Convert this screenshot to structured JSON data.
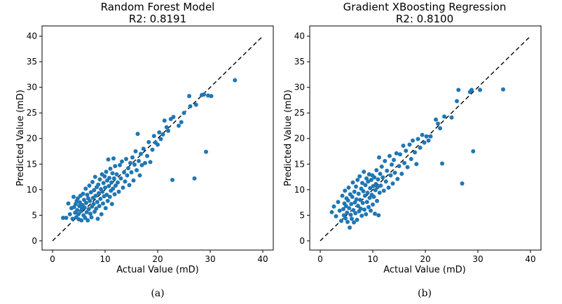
{
  "captions": [
    "(a)",
    "(b)"
  ],
  "chart_data": [
    {
      "type": "scatter",
      "title": "Random Forest Model",
      "subtitle": "R2: 0.8191",
      "xlabel": "Actual Value (mD)",
      "ylabel": "Predicted Value (mD)",
      "xlim": [
        -2,
        42
      ],
      "ylim": [
        -1.8,
        42
      ],
      "xticks": [
        0,
        10,
        20,
        30,
        40
      ],
      "yticks": [
        0,
        5,
        10,
        15,
        20,
        25,
        30,
        35,
        40
      ],
      "grid": false,
      "reference_line": {
        "x": [
          0,
          40
        ],
        "y": [
          0,
          40
        ],
        "style": "dashed"
      },
      "marker_color": "#1f77b4",
      "series": [
        {
          "points": [
            [
              2.0,
              4.5
            ],
            [
              2.6,
              4.5
            ],
            [
              3.0,
              7.3
            ],
            [
              3.3,
              5.2
            ],
            [
              3.6,
              6.4
            ],
            [
              3.8,
              4.3
            ],
            [
              4.0,
              8.6
            ],
            [
              4.1,
              6.6
            ],
            [
              4.3,
              5.5
            ],
            [
              4.4,
              7.2
            ],
            [
              4.5,
              4.6
            ],
            [
              4.6,
              7.8
            ],
            [
              4.7,
              6.0
            ],
            [
              4.8,
              8.3
            ],
            [
              4.9,
              5.2
            ],
            [
              5.0,
              4.2
            ],
            [
              5.1,
              6.8
            ],
            [
              5.2,
              7.5
            ],
            [
              5.3,
              8.8
            ],
            [
              5.4,
              5.8
            ],
            [
              5.5,
              4.0
            ],
            [
              5.6,
              6.3
            ],
            [
              5.7,
              7.0
            ],
            [
              5.8,
              9.2
            ],
            [
              5.9,
              5.0
            ],
            [
              6.0,
              8.0
            ],
            [
              6.1,
              6.5
            ],
            [
              6.2,
              4.5
            ],
            [
              6.3,
              10.2
            ],
            [
              6.4,
              7.4
            ],
            [
              6.5,
              5.6
            ],
            [
              6.6,
              9.0
            ],
            [
              6.7,
              4.0
            ],
            [
              6.8,
              8.3
            ],
            [
              6.9,
              6.2
            ],
            [
              7.0,
              10.8
            ],
            [
              7.1,
              7.8
            ],
            [
              7.2,
              5.3
            ],
            [
              7.3,
              9.5
            ],
            [
              7.4,
              4.6
            ],
            [
              7.5,
              6.7
            ],
            [
              7.6,
              11.5
            ],
            [
              7.7,
              8.4
            ],
            [
              7.8,
              7.2
            ],
            [
              7.9,
              9.9
            ],
            [
              8.0,
              5.7
            ],
            [
              8.1,
              12.5
            ],
            [
              8.2,
              8.8
            ],
            [
              8.3,
              6.3
            ],
            [
              8.4,
              10.5
            ],
            [
              8.5,
              7.6
            ],
            [
              8.6,
              4.3
            ],
            [
              8.7,
              11.0
            ],
            [
              8.8,
              9.3
            ],
            [
              8.9,
              6.8
            ],
            [
              9.0,
              12.0
            ],
            [
              9.1,
              8.2
            ],
            [
              9.2,
              10.1
            ],
            [
              9.3,
              5.2
            ],
            [
              9.4,
              13.0
            ],
            [
              9.5,
              9.6
            ],
            [
              9.6,
              7.3
            ],
            [
              9.7,
              11.3
            ],
            [
              9.8,
              8.7
            ],
            [
              9.9,
              12.6
            ],
            [
              10.0,
              10.4
            ],
            [
              10.1,
              6.4
            ],
            [
              10.2,
              13.5
            ],
            [
              10.3,
              9.0
            ],
            [
              10.4,
              11.8
            ],
            [
              10.5,
              7.8
            ],
            [
              10.6,
              15.9
            ],
            [
              10.7,
              10.7
            ],
            [
              10.8,
              12.3
            ],
            [
              10.9,
              8.6
            ],
            [
              11.0,
              14.1
            ],
            [
              11.1,
              9.8
            ],
            [
              11.2,
              11.4
            ],
            [
              11.3,
              7.2
            ],
            [
              11.4,
              13.2
            ],
            [
              11.5,
              10.2
            ],
            [
              11.6,
              16.1
            ],
            [
              11.7,
              12.2
            ],
            [
              11.8,
              9.1
            ],
            [
              11.9,
              14.6
            ],
            [
              12.0,
              10.8
            ],
            [
              12.2,
              13.0
            ],
            [
              12.4,
              11.4
            ],
            [
              12.6,
              9.6
            ],
            [
              12.8,
              14.8
            ],
            [
              13.0,
              12.2
            ],
            [
              13.2,
              15.5
            ],
            [
              13.4,
              10.4
            ],
            [
              13.6,
              13.4
            ],
            [
              13.8,
              11.6
            ],
            [
              14.0,
              16.0
            ],
            [
              14.2,
              12.8
            ],
            [
              14.4,
              14.2
            ],
            [
              14.6,
              10.9
            ],
            [
              14.8,
              15.2
            ],
            [
              15.0,
              13.4
            ],
            [
              15.2,
              16.3
            ],
            [
              15.4,
              11.8
            ],
            [
              15.6,
              14.9
            ],
            [
              15.8,
              17.5
            ],
            [
              16.0,
              13.8
            ],
            [
              16.2,
              20.9
            ],
            [
              16.4,
              15.6
            ],
            [
              16.6,
              12.8
            ],
            [
              16.8,
              17.0
            ],
            [
              17.0,
              14.8
            ],
            [
              17.3,
              18.0
            ],
            [
              17.6,
              15.2
            ],
            [
              18.0,
              16.6
            ],
            [
              18.3,
              19.3
            ],
            [
              18.6,
              15.4
            ],
            [
              19.0,
              17.8
            ],
            [
              19.3,
              20.5
            ],
            [
              19.6,
              19.2
            ],
            [
              20.0,
              18.8
            ],
            [
              20.3,
              21.2
            ],
            [
              20.6,
              19.9
            ],
            [
              21.0,
              20.8
            ],
            [
              21.3,
              23.5
            ],
            [
              21.7,
              22.2
            ],
            [
              22.0,
              21.5
            ],
            [
              22.5,
              23.8
            ],
            [
              22.8,
              11.9
            ],
            [
              23.0,
              24.2
            ],
            [
              24.0,
              22.5
            ],
            [
              24.5,
              23.2
            ],
            [
              25.0,
              25.0
            ],
            [
              26.0,
              28.3
            ],
            [
              26.2,
              26.3
            ],
            [
              27.0,
              12.2
            ],
            [
              27.3,
              26.6
            ],
            [
              28.4,
              28.5
            ],
            [
              28.8,
              28.6
            ],
            [
              29.2,
              17.4
            ],
            [
              29.6,
              28.4
            ],
            [
              30.2,
              28.3
            ],
            [
              34.7,
              31.4
            ]
          ]
        }
      ]
    },
    {
      "type": "scatter",
      "title": "Gradient XBoosting Regression",
      "subtitle": "R2: 0.8100",
      "xlabel": "Actual Value (mD)",
      "ylabel": "Predicted Value (mD)",
      "xlim": [
        -2,
        42
      ],
      "ylim": [
        -1.8,
        42
      ],
      "xticks": [
        0,
        10,
        20,
        30,
        40
      ],
      "yticks": [
        0,
        5,
        10,
        15,
        20,
        25,
        30,
        35,
        40
      ],
      "grid": false,
      "reference_line": {
        "x": [
          0,
          40
        ],
        "y": [
          0,
          40
        ],
        "style": "dashed"
      },
      "marker_color": "#1f77b4",
      "series": [
        {
          "points": [
            [
              2.2,
              5.6
            ],
            [
              2.6,
              6.7
            ],
            [
              3.0,
              4.8
            ],
            [
              3.4,
              7.6
            ],
            [
              3.7,
              5.9
            ],
            [
              4.0,
              3.9
            ],
            [
              4.2,
              8.8
            ],
            [
              4.4,
              6.2
            ],
            [
              4.5,
              5.0
            ],
            [
              4.6,
              7.3
            ],
            [
              4.7,
              9.8
            ],
            [
              4.8,
              4.4
            ],
            [
              4.9,
              6.8
            ],
            [
              5.0,
              8.3
            ],
            [
              5.1,
              5.5
            ],
            [
              5.2,
              3.7
            ],
            [
              5.3,
              7.9
            ],
            [
              5.4,
              10.4
            ],
            [
              5.5,
              6.4
            ],
            [
              5.6,
              2.6
            ],
            [
              5.7,
              9.1
            ],
            [
              5.8,
              5.1
            ],
            [
              5.9,
              7.2
            ],
            [
              6.0,
              4.3
            ],
            [
              6.1,
              8.6
            ],
            [
              6.2,
              11.4
            ],
            [
              6.3,
              6.0
            ],
            [
              6.4,
              3.6
            ],
            [
              6.5,
              9.6
            ],
            [
              6.6,
              7.5
            ],
            [
              6.7,
              5.4
            ],
            [
              6.8,
              10.6
            ],
            [
              6.9,
              8.1
            ],
            [
              7.0,
              4.1
            ],
            [
              7.1,
              11.9
            ],
            [
              7.2,
              6.8
            ],
            [
              7.3,
              9.2
            ],
            [
              7.4,
              5.8
            ],
            [
              7.5,
              12.6
            ],
            [
              7.6,
              8.0
            ],
            [
              7.7,
              6.3
            ],
            [
              7.8,
              10.2
            ],
            [
              7.9,
              4.9
            ],
            [
              8.0,
              11.3
            ],
            [
              8.1,
              7.4
            ],
            [
              8.2,
              9.7
            ],
            [
              8.3,
              13.5
            ],
            [
              8.4,
              6.1
            ],
            [
              8.5,
              8.8
            ],
            [
              8.6,
              10.9
            ],
            [
              8.7,
              5.2
            ],
            [
              8.8,
              12.2
            ],
            [
              8.9,
              7.6
            ],
            [
              9.0,
              9.4
            ],
            [
              9.1,
              11.6
            ],
            [
              9.2,
              6.6
            ],
            [
              9.3,
              13.0
            ],
            [
              9.4,
              8.4
            ],
            [
              9.5,
              10.3
            ],
            [
              9.6,
              5.9
            ],
            [
              9.7,
              11.9
            ],
            [
              9.8,
              9.0
            ],
            [
              9.9,
              12.8
            ],
            [
              10.0,
              7.1
            ],
            [
              10.1,
              10.7
            ],
            [
              10.2,
              8.6
            ],
            [
              10.3,
              12.4
            ],
            [
              10.4,
              5.3
            ],
            [
              10.5,
              9.9
            ],
            [
              10.6,
              11.1
            ],
            [
              10.7,
              13.8
            ],
            [
              10.8,
              7.8
            ],
            [
              10.9,
              10.5
            ],
            [
              11.0,
              12.0
            ],
            [
              11.1,
              5.0
            ],
            [
              11.2,
              16.3
            ],
            [
              11.3,
              9.4
            ],
            [
              11.4,
              13.1
            ],
            [
              11.5,
              10.8
            ],
            [
              11.7,
              14.5
            ],
            [
              11.9,
              12.4
            ],
            [
              12.1,
              9.8
            ],
            [
              12.3,
              15.6
            ],
            [
              12.5,
              11.6
            ],
            [
              12.7,
              13.7
            ],
            [
              13.0,
              10.4
            ],
            [
              13.2,
              16.6
            ],
            [
              13.4,
              12.8
            ],
            [
              13.6,
              14.9
            ],
            [
              13.8,
              11.2
            ],
            [
              14.0,
              15.8
            ],
            [
              14.2,
              13.3
            ],
            [
              14.5,
              17.1
            ],
            [
              14.7,
              12.1
            ],
            [
              15.0,
              14.6
            ],
            [
              15.2,
              16.9
            ],
            [
              15.5,
              13.1
            ],
            [
              15.8,
              18.6
            ],
            [
              16.0,
              15.2
            ],
            [
              16.3,
              17.6
            ],
            [
              16.6,
              14.4
            ],
            [
              17.0,
              18.8
            ],
            [
              17.3,
              16.0
            ],
            [
              17.6,
              19.6
            ],
            [
              18.0,
              17.3
            ],
            [
              18.3,
              15.0
            ],
            [
              18.6,
              19.9
            ],
            [
              19.0,
              18.2
            ],
            [
              19.4,
              20.7
            ],
            [
              19.8,
              19.2
            ],
            [
              20.2,
              20.4
            ],
            [
              20.6,
              19.6
            ],
            [
              21.0,
              20.4
            ],
            [
              22.0,
              23.7
            ],
            [
              22.4,
              22.9
            ],
            [
              22.8,
              22.0
            ],
            [
              23.2,
              15.1
            ],
            [
              23.6,
              24.3
            ],
            [
              25.0,
              24.1
            ],
            [
              26.0,
              27.3
            ],
            [
              26.3,
              29.5
            ],
            [
              27.0,
              11.2
            ],
            [
              28.5,
              29.1
            ],
            [
              28.8,
              29.5
            ],
            [
              29.1,
              17.5
            ],
            [
              30.4,
              29.5
            ],
            [
              34.8,
              29.6
            ]
          ]
        }
      ]
    }
  ]
}
